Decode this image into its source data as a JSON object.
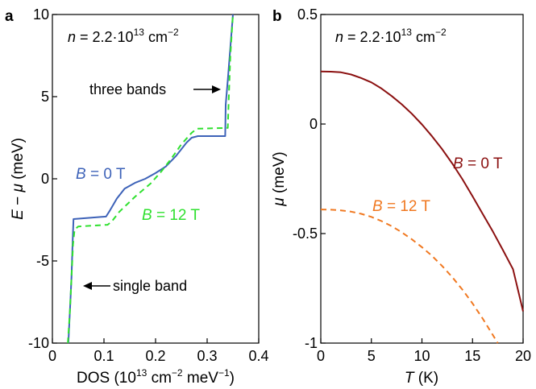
{
  "chart_data": [
    {
      "panel": "a",
      "type": "line",
      "xlabel": "DOS (10¹³ cm⁻² meV⁻¹)",
      "ylabel": "E − μ (meV)",
      "xlim": [
        0,
        0.4
      ],
      "ylim": [
        -10,
        10
      ],
      "xticks": [
        "0",
        "0.1",
        "0.2",
        "0.3",
        "0.4"
      ],
      "yticks": [
        "-10",
        "-5",
        "0",
        "5",
        "10"
      ],
      "annotation": "n = 2.2·10¹³ cm⁻²",
      "series": [
        {
          "name": "B = 0 T",
          "color": "#3d62b8",
          "style": "solid",
          "x": [
            0.031,
            0.034,
            0.037,
            0.039,
            0.041,
            0.104,
            0.112,
            0.125,
            0.14,
            0.16,
            0.18,
            0.2,
            0.22,
            0.24,
            0.26,
            0.27,
            0.282,
            0.335,
            0.336,
            0.34,
            0.345,
            0.35
          ],
          "y": [
            -10,
            -8,
            -6,
            -4,
            -2.45,
            -2.3,
            -1.9,
            -1.2,
            -0.6,
            -0.25,
            0,
            0.35,
            0.75,
            1.4,
            2.2,
            2.5,
            2.6,
            2.6,
            4.5,
            6,
            8,
            10
          ]
        },
        {
          "name": "B = 12 T",
          "color": "#2fe02f",
          "style": "dashed",
          "x": [
            0.03,
            0.034,
            0.037,
            0.04,
            0.043,
            0.05,
            0.107,
            0.115,
            0.13,
            0.16,
            0.19,
            0.21,
            0.23,
            0.25,
            0.27,
            0.28,
            0.34,
            0.342,
            0.345,
            0.35
          ],
          "y": [
            -10,
            -8,
            -6,
            -4,
            -3.1,
            -2.9,
            -2.8,
            -2.6,
            -2.0,
            -1.1,
            -0.3,
            0.4,
            1.2,
            2.1,
            2.8,
            3.05,
            3.1,
            5,
            7.5,
            10
          ]
        }
      ],
      "arrows": [
        "three bands",
        "single band"
      ]
    },
    {
      "panel": "b",
      "type": "line",
      "xlabel": "T (K)",
      "ylabel": "μ (meV)",
      "xlim": [
        0,
        20
      ],
      "ylim": [
        -1,
        0.5
      ],
      "xticks": [
        "0",
        "5",
        "10",
        "15",
        "20"
      ],
      "yticks": [
        "-1",
        "-0.5",
        "0",
        "0.5"
      ],
      "annotation": "n = 2.2·10¹³ cm⁻²",
      "series": [
        {
          "name": "B = 0 T",
          "color": "#8b1010",
          "style": "solid",
          "x": [
            0,
            1,
            2,
            3,
            4,
            5,
            6,
            7,
            8,
            9,
            10,
            11,
            12,
            13,
            14,
            15,
            16,
            17,
            18,
            19,
            20
          ],
          "y": [
            0.24,
            0.239,
            0.236,
            0.226,
            0.21,
            0.19,
            0.162,
            0.128,
            0.09,
            0.047,
            -0.002,
            -0.056,
            -0.115,
            -0.18,
            -0.252,
            -0.33,
            -0.41,
            -0.49,
            -0.575,
            -0.663,
            -0.855
          ]
        },
        {
          "name": "B = 12 T",
          "color": "#f07820",
          "style": "dashed",
          "x": [
            0,
            1,
            2,
            3,
            4,
            5,
            6,
            7,
            8,
            9,
            10,
            11,
            12,
            13,
            14,
            15,
            16,
            17,
            17.5
          ],
          "y": [
            -0.39,
            -0.391,
            -0.394,
            -0.4,
            -0.41,
            -0.424,
            -0.443,
            -0.466,
            -0.494,
            -0.526,
            -0.562,
            -0.602,
            -0.648,
            -0.699,
            -0.756,
            -0.819,
            -0.888,
            -0.963,
            -1.0
          ]
        }
      ]
    }
  ],
  "labels": {
    "panel_a": "a",
    "panel_b": "b",
    "annot_prefix": "n",
    "annot_value": " = 2.2·10",
    "annot_exp": "13",
    "annot_unit": " cm",
    "annot_unit_exp": "−2",
    "three_bands": "three bands",
    "single_band": "single band",
    "b0_var": "B",
    "b0_rest": " = 0 T",
    "b12_var": "B",
    "b12_rest": " = 12 T",
    "a_xlabel_main": "DOS (10",
    "a_xlabel_exp1": "13",
    "a_xlabel_mid": " cm",
    "a_xlabel_exp2": "−2",
    "a_xlabel_mid2": " meV",
    "a_xlabel_exp3": "−1",
    "a_xlabel_end": ")",
    "a_ylabel_E": "E",
    "a_ylabel_mid": " − ",
    "a_ylabel_mu": "μ",
    "a_ylabel_end": " (meV)",
    "b_xlabel_T": "T",
    "b_xlabel_end": " (K)",
    "b_ylabel_mu": "μ",
    "b_ylabel_end": " (meV)"
  }
}
